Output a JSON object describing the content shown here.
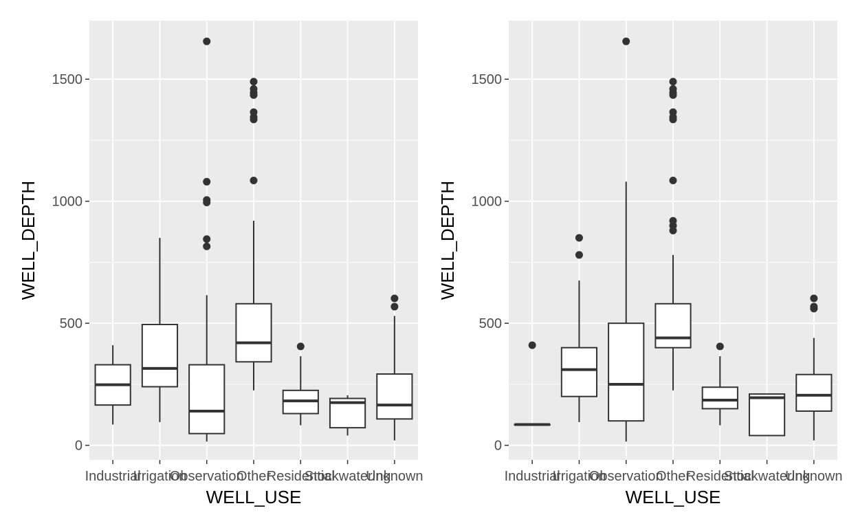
{
  "chart_data": [
    {
      "type": "boxplot",
      "title": "",
      "xlabel": "WELL_USE",
      "ylabel": "WELL_DEPTH",
      "ylim": [
        -60,
        1740
      ],
      "yticks": [
        0,
        500,
        1000,
        1500
      ],
      "grid": true,
      "categories": [
        "Industrial",
        "Irrigation",
        "Observation",
        "Other",
        "Residential",
        "Stockwatering",
        "Unknown"
      ],
      "boxes": [
        {
          "category": "Industrial",
          "lower_whisker": 85,
          "q1": 165,
          "median": 248,
          "q3": 330,
          "upper_whisker": 410,
          "outliers": []
        },
        {
          "category": "Irrigation",
          "lower_whisker": 95,
          "q1": 240,
          "median": 315,
          "q3": 495,
          "upper_whisker": 850,
          "outliers": []
        },
        {
          "category": "Observation",
          "lower_whisker": 15,
          "q1": 48,
          "median": 140,
          "q3": 330,
          "upper_whisker": 615,
          "outliers": [
            815,
            845,
            995,
            1005,
            1080,
            1655
          ]
        },
        {
          "category": "Other",
          "lower_whisker": 225,
          "q1": 342,
          "median": 420,
          "q3": 580,
          "upper_whisker": 920,
          "outliers": [
            1085,
            1335,
            1345,
            1365,
            1435,
            1445,
            1460,
            1490
          ]
        },
        {
          "category": "Residential",
          "lower_whisker": 82,
          "q1": 130,
          "median": 182,
          "q3": 225,
          "upper_whisker": 365,
          "outliers": [
            405
          ]
        },
        {
          "category": "Stockwatering",
          "lower_whisker": 40,
          "q1": 72,
          "median": 175,
          "q3": 192,
          "upper_whisker": 205,
          "outliers": []
        },
        {
          "category": "Unknown",
          "lower_whisker": 20,
          "q1": 108,
          "median": 165,
          "q3": 292,
          "upper_whisker": 530,
          "outliers": [
            568,
            602
          ]
        }
      ]
    },
    {
      "type": "boxplot",
      "title": "",
      "xlabel": "WELL_USE",
      "ylabel": "WELL_DEPTH",
      "ylim": [
        -60,
        1740
      ],
      "yticks": [
        0,
        500,
        1000,
        1500
      ],
      "grid": true,
      "categories": [
        "Industrial",
        "Irrigation",
        "Observation",
        "Other",
        "Residential",
        "Stockwatering",
        "Unknown"
      ],
      "boxes": [
        {
          "category": "Industrial",
          "lower_whisker": 85,
          "q1": 85,
          "median": 85,
          "q3": 85,
          "upper_whisker": 85,
          "outliers": [
            410
          ]
        },
        {
          "category": "Irrigation",
          "lower_whisker": 95,
          "q1": 200,
          "median": 310,
          "q3": 400,
          "upper_whisker": 675,
          "outliers": [
            780,
            850
          ]
        },
        {
          "category": "Observation",
          "lower_whisker": 15,
          "q1": 100,
          "median": 250,
          "q3": 500,
          "upper_whisker": 1080,
          "outliers": [
            1655
          ]
        },
        {
          "category": "Other",
          "lower_whisker": 225,
          "q1": 400,
          "median": 440,
          "q3": 580,
          "upper_whisker": 780,
          "outliers": [
            880,
            900,
            920,
            1085,
            1335,
            1345,
            1365,
            1435,
            1445,
            1460,
            1490
          ]
        },
        {
          "category": "Residential",
          "lower_whisker": 82,
          "q1": 150,
          "median": 185,
          "q3": 238,
          "upper_whisker": 365,
          "outliers": [
            405
          ]
        },
        {
          "category": "Stockwatering",
          "lower_whisker": 40,
          "q1": 40,
          "median": 195,
          "q3": 210,
          "upper_whisker": 210,
          "outliers": []
        },
        {
          "category": "Unknown",
          "lower_whisker": 20,
          "q1": 140,
          "median": 205,
          "q3": 290,
          "upper_whisker": 440,
          "outliers": [
            560,
            568,
            602
          ]
        }
      ]
    }
  ]
}
